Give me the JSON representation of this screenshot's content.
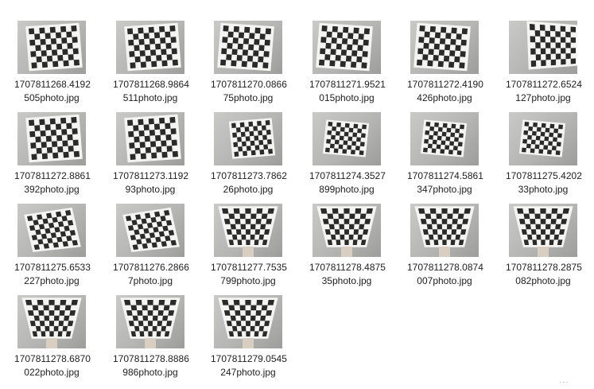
{
  "folder": {
    "files": [
      {
        "line1": "1707811268.4192",
        "line2": "505photo.jpg",
        "board": "tilt-right"
      },
      {
        "line1": "1707811268.9864",
        "line2": "511photo.jpg",
        "board": "tilt-right"
      },
      {
        "line1": "1707811270.0866",
        "line2": "75photo.jpg",
        "board": "tilt-left"
      },
      {
        "line1": "1707811271.9521",
        "line2": "015photo.jpg",
        "board": "tilt-left"
      },
      {
        "line1": "1707811272.4190",
        "line2": "426photo.jpg",
        "board": "tilt-left"
      },
      {
        "line1": "1707811272.6524",
        "line2": "127photo.jpg",
        "board": "tilt-left-wide"
      },
      {
        "line1": "1707811272.8861",
        "line2": "392photo.jpg",
        "board": "tilt-right"
      },
      {
        "line1": "1707811273.1192",
        "line2": "93photo.jpg",
        "board": "tilt-right"
      },
      {
        "line1": "1707811273.7862",
        "line2": "26photo.jpg",
        "board": "small-right"
      },
      {
        "line1": "1707811274.3527",
        "line2": "899photo.jpg",
        "board": "small-left"
      },
      {
        "line1": "1707811274.5861",
        "line2": "347photo.jpg",
        "board": "small-left"
      },
      {
        "line1": "1707811275.4202",
        "line2": "33photo.jpg",
        "board": "small-left"
      },
      {
        "line1": "1707811275.6533",
        "line2": "227photo.jpg",
        "board": "small-tilt"
      },
      {
        "line1": "1707811276.2866",
        "line2": "7photo.jpg",
        "board": "small-tilt"
      },
      {
        "line1": "1707811277.7535",
        "line2": "799photo.jpg",
        "board": "trapezoid"
      },
      {
        "line1": "1707811278.4875",
        "line2": "35photo.jpg",
        "board": "trapezoid"
      },
      {
        "line1": "1707811278.0874",
        "line2": "007photo.jpg",
        "board": "trapezoid"
      },
      {
        "line1": "1707811278.2875",
        "line2": "082photo.jpg",
        "board": "trapezoid"
      },
      {
        "line1": "1707811278.6870",
        "line2": "022photo.jpg",
        "board": "trapezoid"
      },
      {
        "line1": "1707811278.8886",
        "line2": "986photo.jpg",
        "board": "trapezoid"
      },
      {
        "line1": "1707811279.0545",
        "line2": "247photo.jpg",
        "board": "trapezoid"
      }
    ]
  }
}
